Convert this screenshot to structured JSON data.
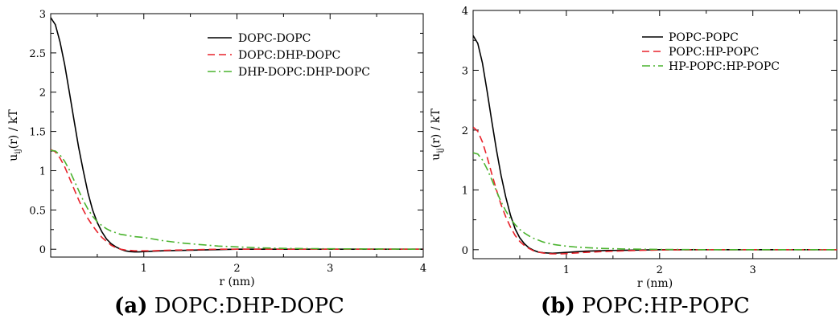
{
  "chart_data": [
    {
      "type": "line",
      "caption_letter": "(a)",
      "caption_text": "DOPC:DHP-DOPC",
      "xlabel": "r (nm)",
      "ylabel_main": "u",
      "ylabel_sub": "ij",
      "ylabel_rest": "(r) / kT",
      "xlim": [
        0,
        4
      ],
      "ylim": [
        -0.1,
        3
      ],
      "xticks": [
        1,
        2,
        3,
        4
      ],
      "xtick_labels": [
        "1",
        "2",
        "3",
        "4"
      ],
      "yticks": [
        0,
        0.5,
        1,
        1.5,
        2,
        2.5,
        3
      ],
      "ytick_labels": [
        "0",
        "0.5",
        "1",
        "1.5",
        "2",
        "2.5",
        "3"
      ],
      "grid": false,
      "legend_position": "top-right",
      "series": [
        {
          "name": "DOPC-DOPC",
          "color": "#000000",
          "dash": "solid",
          "x": [
            0,
            0.05,
            0.1,
            0.15,
            0.2,
            0.25,
            0.3,
            0.35,
            0.4,
            0.45,
            0.5,
            0.55,
            0.6,
            0.65,
            0.7,
            0.75,
            0.8,
            0.85,
            0.9,
            0.95,
            1.0,
            1.1,
            1.2,
            1.4,
            1.6,
            1.8,
            2.0,
            2.5,
            3.0,
            4.0
          ],
          "y": [
            2.95,
            2.86,
            2.64,
            2.35,
            2.0,
            1.65,
            1.3,
            1.0,
            0.72,
            0.5,
            0.34,
            0.22,
            0.13,
            0.07,
            0.03,
            0.0,
            -0.02,
            -0.03,
            -0.035,
            -0.035,
            -0.03,
            -0.025,
            -0.02,
            -0.015,
            -0.01,
            -0.005,
            0.0,
            0.0,
            0.0,
            0.0
          ]
        },
        {
          "name": "DOPC:DHP-DOPC",
          "color": "#e8232b",
          "dash": "dashed",
          "x": [
            0,
            0.05,
            0.1,
            0.15,
            0.2,
            0.25,
            0.3,
            0.35,
            0.4,
            0.45,
            0.5,
            0.55,
            0.6,
            0.65,
            0.7,
            0.75,
            0.8,
            0.85,
            0.9,
            0.95,
            1.0,
            1.1,
            1.2,
            1.4,
            1.6,
            1.8,
            2.0,
            2.5,
            3.0,
            4.0
          ],
          "y": [
            1.27,
            1.24,
            1.16,
            1.05,
            0.91,
            0.77,
            0.63,
            0.5,
            0.39,
            0.3,
            0.22,
            0.15,
            0.1,
            0.05,
            0.02,
            0.0,
            -0.01,
            -0.015,
            -0.02,
            -0.02,
            -0.02,
            -0.02,
            -0.015,
            -0.01,
            -0.005,
            0.0,
            0.0,
            0.0,
            0.0,
            0.0
          ]
        },
        {
          "name": "DHP-DOPC:DHP-DOPC",
          "color": "#4ab32e",
          "dash": "dashdot",
          "x": [
            0,
            0.05,
            0.1,
            0.15,
            0.2,
            0.25,
            0.3,
            0.35,
            0.4,
            0.45,
            0.5,
            0.55,
            0.6,
            0.65,
            0.7,
            0.75,
            0.8,
            0.85,
            0.9,
            0.95,
            1.0,
            1.1,
            1.2,
            1.4,
            1.6,
            1.8,
            2.0,
            2.2,
            2.5,
            3.0,
            4.0
          ],
          "y": [
            1.26,
            1.25,
            1.2,
            1.12,
            1.01,
            0.88,
            0.75,
            0.62,
            0.51,
            0.42,
            0.35,
            0.3,
            0.26,
            0.23,
            0.21,
            0.19,
            0.18,
            0.17,
            0.16,
            0.155,
            0.15,
            0.13,
            0.11,
            0.08,
            0.06,
            0.04,
            0.03,
            0.02,
            0.01,
            0.005,
            0.0
          ]
        }
      ]
    },
    {
      "type": "line",
      "caption_letter": "(b)",
      "caption_text": "POPC:HP-POPC",
      "xlabel": "r (nm)",
      "ylabel_main": "u",
      "ylabel_sub": "ij",
      "ylabel_rest": "(r) / kT",
      "xlim": [
        0,
        3.9
      ],
      "ylim": [
        -0.15,
        4
      ],
      "xticks": [
        1,
        2,
        3
      ],
      "xtick_labels": [
        "1",
        "2",
        "3"
      ],
      "yticks": [
        0,
        1,
        2,
        3,
        4
      ],
      "ytick_labels": [
        "0",
        "1",
        "2",
        "3",
        "4"
      ],
      "grid": false,
      "legend_position": "top-right",
      "series": [
        {
          "name": "POPC-POPC",
          "color": "#000000",
          "dash": "solid",
          "x": [
            0,
            0.05,
            0.1,
            0.15,
            0.2,
            0.25,
            0.3,
            0.35,
            0.4,
            0.45,
            0.5,
            0.55,
            0.6,
            0.65,
            0.7,
            0.75,
            0.8,
            0.85,
            0.9,
            0.95,
            1.0,
            1.1,
            1.2,
            1.4,
            1.6,
            1.8,
            2.0,
            2.5,
            3.0,
            3.9
          ],
          "y": [
            3.58,
            3.45,
            3.12,
            2.65,
            2.15,
            1.67,
            1.24,
            0.88,
            0.58,
            0.35,
            0.2,
            0.1,
            0.03,
            -0.01,
            -0.04,
            -0.05,
            -0.055,
            -0.06,
            -0.055,
            -0.05,
            -0.045,
            -0.035,
            -0.025,
            -0.015,
            -0.01,
            -0.005,
            0.0,
            0.0,
            0.0,
            0.0
          ]
        },
        {
          "name": "POPC:HP-POPC",
          "color": "#e8232b",
          "dash": "dashed",
          "x": [
            0,
            0.05,
            0.1,
            0.15,
            0.2,
            0.25,
            0.3,
            0.35,
            0.4,
            0.45,
            0.5,
            0.55,
            0.6,
            0.65,
            0.7,
            0.75,
            0.8,
            0.85,
            0.9,
            0.95,
            1.0,
            1.1,
            1.2,
            1.4,
            1.6,
            1.8,
            2.0,
            2.5,
            3.0,
            3.9
          ],
          "y": [
            2.05,
            1.98,
            1.8,
            1.55,
            1.27,
            1.0,
            0.75,
            0.55,
            0.38,
            0.24,
            0.14,
            0.07,
            0.02,
            -0.02,
            -0.04,
            -0.055,
            -0.065,
            -0.07,
            -0.07,
            -0.07,
            -0.065,
            -0.055,
            -0.045,
            -0.03,
            -0.02,
            -0.01,
            -0.005,
            0.0,
            0.0,
            0.0
          ]
        },
        {
          "name": "HP-POPC:HP-POPC",
          "color": "#4ab32e",
          "dash": "dashdot",
          "x": [
            0,
            0.05,
            0.1,
            0.15,
            0.2,
            0.25,
            0.3,
            0.35,
            0.4,
            0.45,
            0.5,
            0.55,
            0.6,
            0.65,
            0.7,
            0.75,
            0.8,
            0.85,
            0.9,
            0.95,
            1.0,
            1.1,
            1.2,
            1.4,
            1.6,
            1.8,
            2.0,
            2.2,
            2.5,
            3.0,
            3.9
          ],
          "y": [
            1.62,
            1.6,
            1.5,
            1.35,
            1.17,
            0.98,
            0.8,
            0.65,
            0.52,
            0.42,
            0.34,
            0.28,
            0.23,
            0.19,
            0.16,
            0.13,
            0.11,
            0.09,
            0.08,
            0.07,
            0.06,
            0.045,
            0.035,
            0.02,
            0.012,
            0.008,
            0.005,
            0.003,
            0.0,
            0.0,
            0.0
          ]
        }
      ]
    }
  ]
}
